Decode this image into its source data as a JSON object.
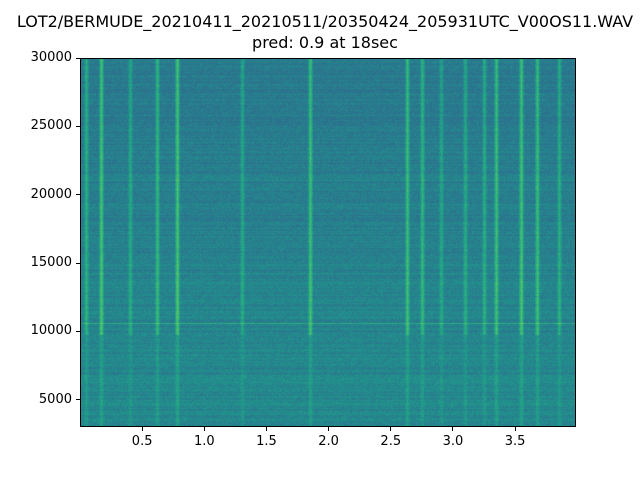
{
  "chart_data": {
    "type": "heatmap",
    "title": "LOT2/BERMUDE_20210411_20210511/20350424_205931UTC_V00OS11.WAV",
    "subtitle": "pred: 0.9 at 18sec",
    "xlabel": "",
    "ylabel": "",
    "xlim": [
      0,
      3.99
    ],
    "ylim": [
      3000,
      30000
    ],
    "x_ticks": [
      "0.5",
      "1.0",
      "1.5",
      "2.0",
      "2.5",
      "3.0",
      "3.5"
    ],
    "x_tick_values": [
      0.5,
      1.0,
      1.5,
      2.0,
      2.5,
      3.0,
      3.5
    ],
    "y_ticks": [
      "5000",
      "10000",
      "15000",
      "20000",
      "25000",
      "30000"
    ],
    "y_tick_values": [
      5000,
      10000,
      15000,
      20000,
      25000,
      30000
    ],
    "colormap": "viridis",
    "grid": false,
    "horizontal_lines_hz": [
      10600,
      21100
    ],
    "transient_times_sec": [
      0.05,
      0.17,
      0.4,
      0.62,
      0.78,
      1.3,
      1.85,
      2.63,
      2.75,
      2.9,
      3.1,
      3.25,
      3.35,
      3.55,
      3.68,
      3.85
    ],
    "colors": {
      "low": "#2f6b8e",
      "mid": "#22898c",
      "high": "#2ab07f"
    }
  }
}
